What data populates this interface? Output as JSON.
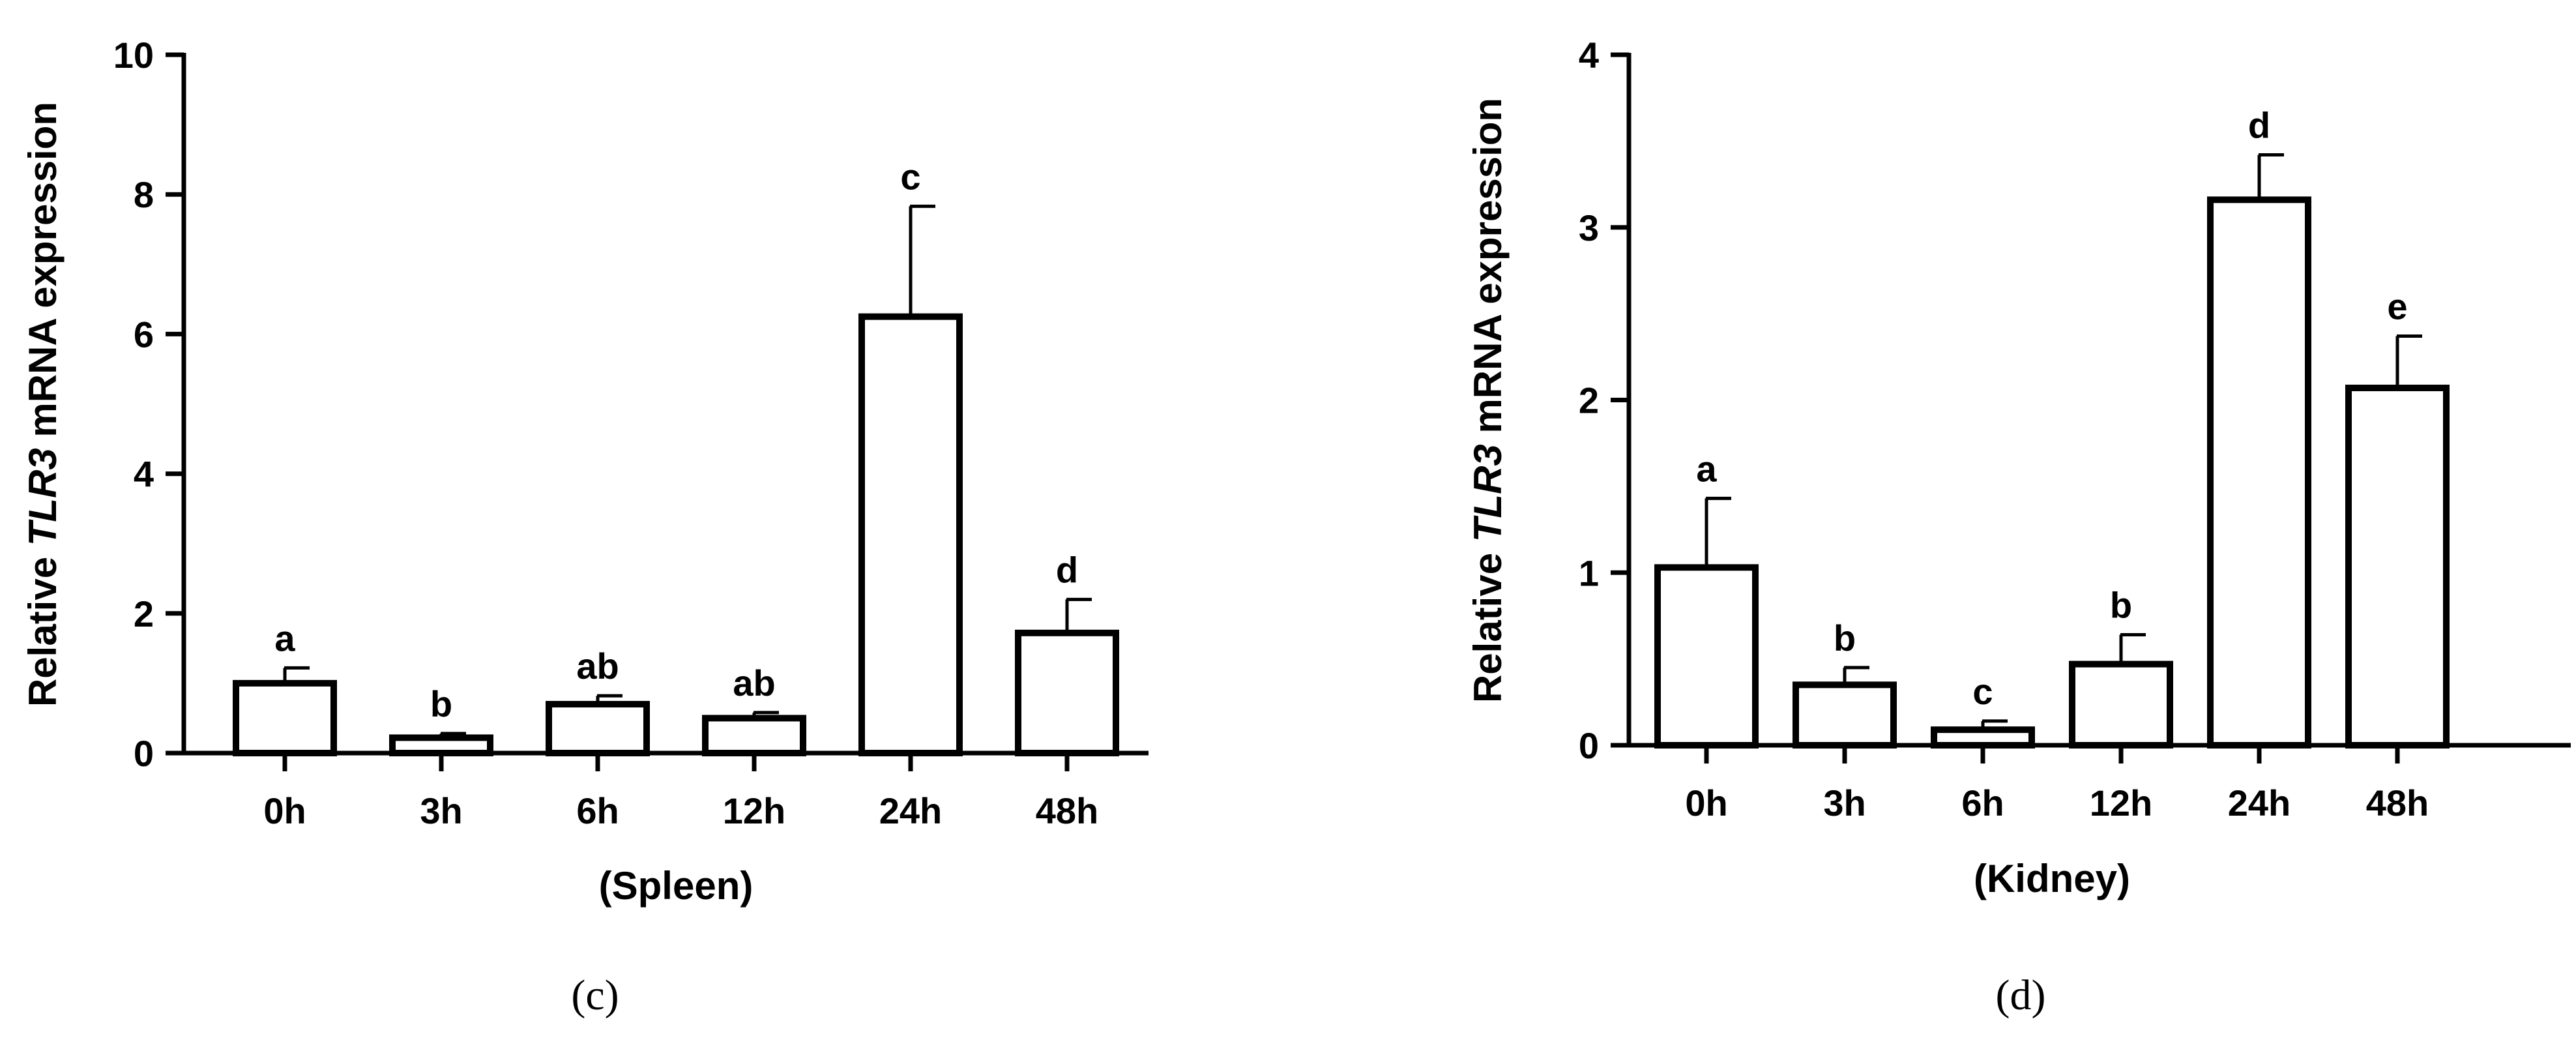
{
  "chart_data": [
    {
      "type": "bar",
      "panel_label": "(c)",
      "xlabel": "(Spleen)",
      "ylabel": {
        "prefix": "Relative ",
        "gene": "TLR3",
        "suffix": " mRNA expression"
      },
      "ylim": [
        0,
        10
      ],
      "yticks": [
        0,
        2,
        4,
        6,
        8,
        10
      ],
      "categories": [
        "0h",
        "3h",
        "6h",
        "12h",
        "24h",
        "48h"
      ],
      "values": [
        1.0,
        0.22,
        0.7,
        0.5,
        6.25,
        1.72
      ],
      "errors": [
        0.22,
        0.06,
        0.12,
        0.08,
        1.58,
        0.48
      ],
      "significance": [
        "a",
        "b",
        "ab",
        "ab",
        "c",
        "d"
      ],
      "grid": false
    },
    {
      "type": "bar",
      "panel_label": "(d)",
      "xlabel": "(Kidney)",
      "ylabel": {
        "prefix": "Relative ",
        "gene": "TLR3",
        "suffix": " mRNA expression"
      },
      "ylim": [
        0,
        4
      ],
      "yticks": [
        0,
        1,
        2,
        3,
        4
      ],
      "categories": [
        "0h",
        "3h",
        "6h",
        "12h",
        "24h",
        "48h"
      ],
      "values": [
        1.03,
        0.35,
        0.09,
        0.47,
        3.16,
        2.07
      ],
      "errors": [
        0.4,
        0.1,
        0.05,
        0.17,
        0.26,
        0.3
      ],
      "significance": [
        "a",
        "b",
        "c",
        "b",
        "d",
        "e"
      ],
      "grid": false
    }
  ]
}
